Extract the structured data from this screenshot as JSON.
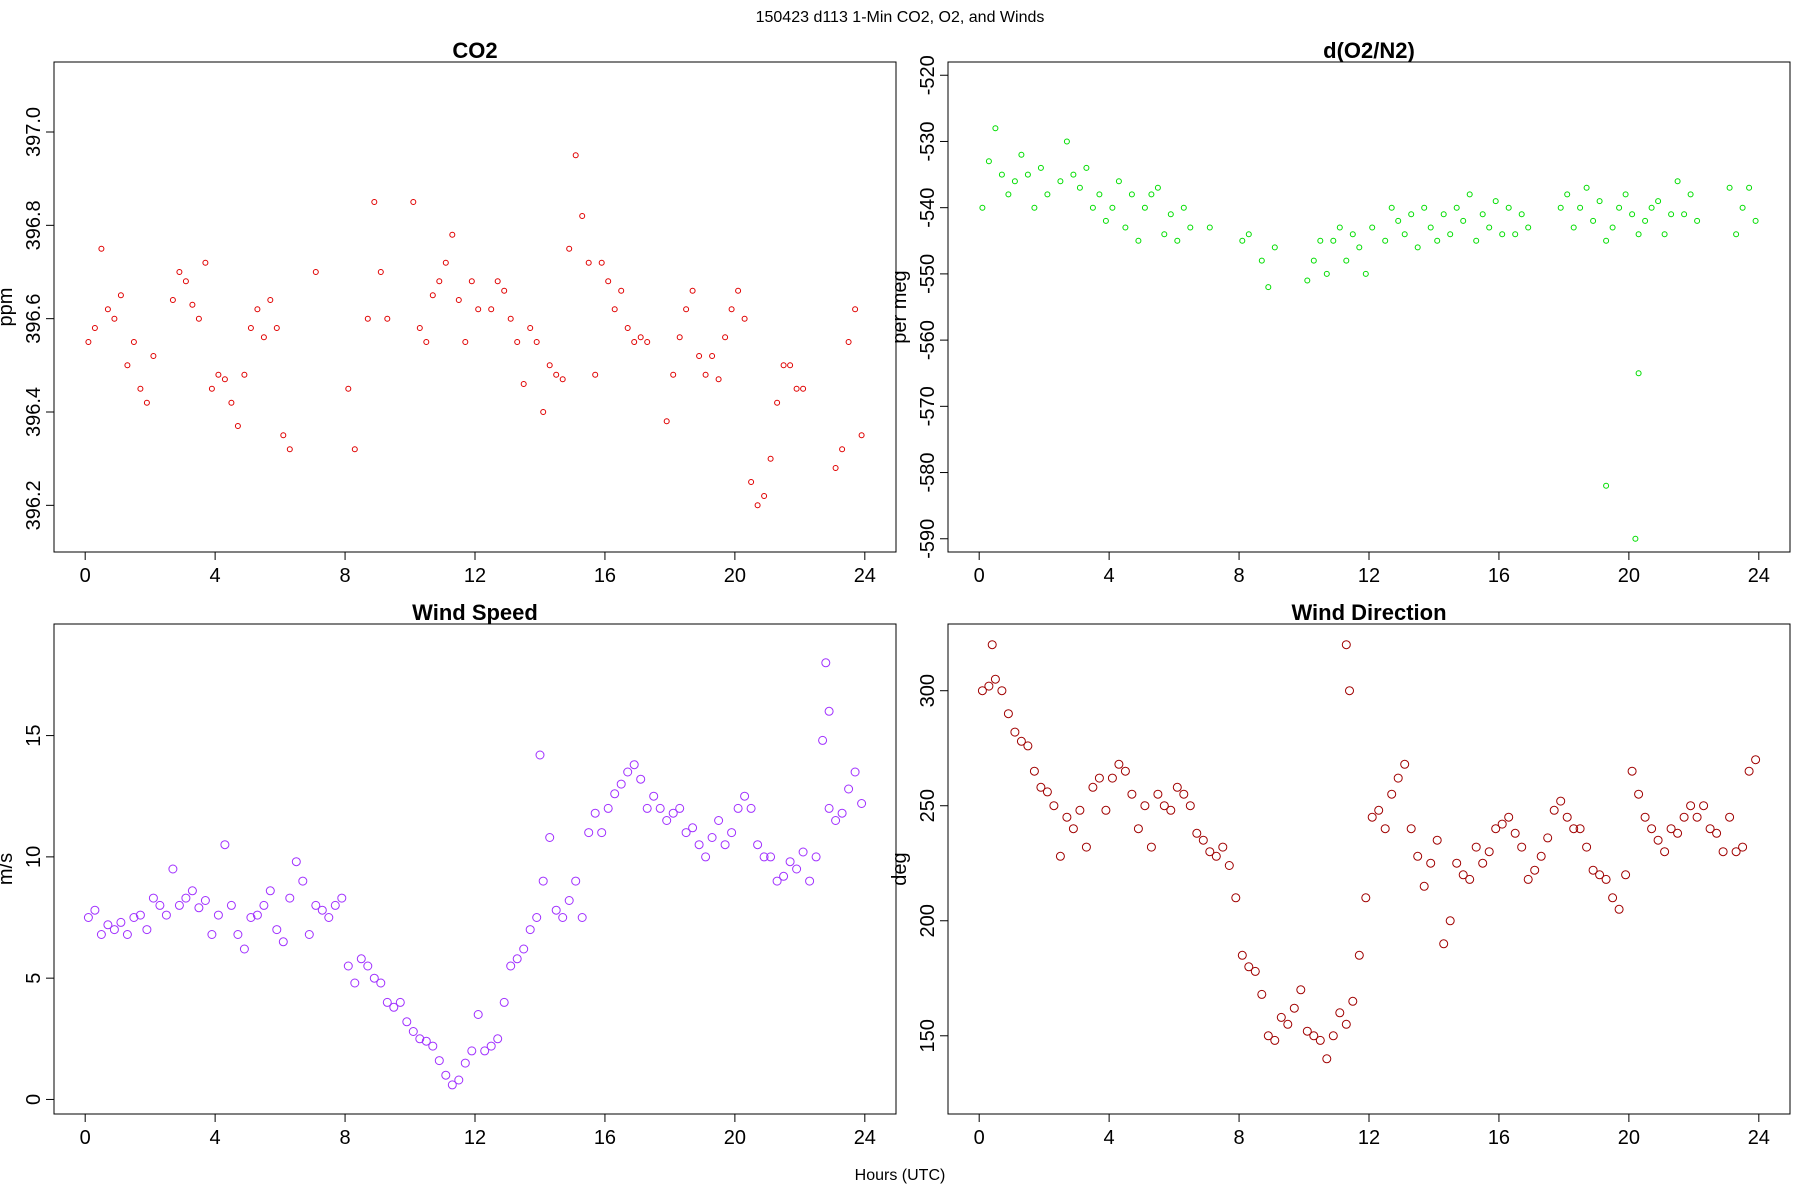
{
  "figure": {
    "title": "150423   d113   1-Min CO2, O2, and Winds",
    "xlabel": "Hours (UTC)"
  },
  "chart_data": [
    {
      "type": "scatter",
      "title": "CO2",
      "ylabel": "ppm",
      "color": "#e00000",
      "xlim": [
        -0.96,
        24.96
      ],
      "ylim": [
        396.1,
        397.15
      ],
      "xticks": [
        0,
        4,
        8,
        12,
        16,
        20,
        24
      ],
      "yticks": [
        396.2,
        396.4,
        396.6,
        396.8,
        397.0
      ],
      "ytick_labels": [
        "396.2",
        "396.4",
        "396.6",
        "396.8",
        "397.0"
      ],
      "grid": false,
      "series": [
        {
          "x": [
            0.1,
            0.3,
            0.5,
            0.7,
            0.9,
            1.1,
            1.3,
            1.5,
            1.7,
            1.9,
            2.1,
            2.7,
            2.9,
            3.1,
            3.3,
            3.5,
            3.7,
            3.9,
            4.1,
            4.3,
            4.5,
            4.7,
            4.9,
            5.1,
            5.3,
            5.5,
            5.7,
            5.9,
            6.1,
            6.3,
            7.1,
            8.1,
            8.3,
            8.7,
            8.9,
            9.1,
            9.3,
            10.1,
            10.3,
            10.5,
            10.7,
            10.9,
            11.1,
            11.3,
            11.5,
            11.7,
            11.9,
            12.1,
            12.5,
            12.7,
            12.9,
            13.1,
            13.3,
            13.5,
            13.7,
            13.9,
            14.1,
            14.3,
            14.5,
            14.7,
            14.9,
            15.1,
            15.3,
            15.5,
            15.7,
            15.9,
            16.1,
            16.3,
            16.5,
            16.7,
            16.9,
            17.1,
            17.3,
            17.9,
            18.1,
            18.3,
            18.5,
            18.7,
            18.9,
            19.1,
            19.3,
            19.5,
            19.7,
            19.9,
            20.1,
            20.3,
            20.5,
            20.7,
            20.9,
            21.1,
            21.3,
            21.5,
            21.7,
            21.9,
            22.1,
            23.1,
            23.3,
            23.5,
            23.7,
            23.9
          ],
          "y": [
            396.55,
            396.58,
            396.75,
            396.62,
            396.6,
            396.65,
            396.5,
            396.55,
            396.45,
            396.42,
            396.52,
            396.64,
            396.7,
            396.68,
            396.63,
            396.6,
            396.72,
            396.45,
            396.48,
            396.47,
            396.42,
            396.37,
            396.48,
            396.58,
            396.62,
            396.56,
            396.64,
            396.58,
            396.35,
            396.32,
            396.7,
            396.45,
            396.32,
            396.6,
            396.85,
            396.7,
            396.6,
            396.85,
            396.58,
            396.55,
            396.65,
            396.68,
            396.72,
            396.78,
            396.64,
            396.55,
            396.68,
            396.62,
            396.62,
            396.68,
            396.66,
            396.6,
            396.55,
            396.46,
            396.58,
            396.55,
            396.4,
            396.5,
            396.48,
            396.47,
            396.75,
            396.95,
            396.82,
            396.72,
            396.48,
            396.72,
            396.68,
            396.62,
            396.66,
            396.58,
            396.55,
            396.56,
            396.55,
            396.38,
            396.48,
            396.56,
            396.62,
            396.66,
            396.52,
            396.48,
            396.52,
            396.47,
            396.56,
            396.62,
            396.66,
            396.6,
            396.25,
            396.2,
            396.22,
            396.3,
            396.42,
            396.5,
            396.5,
            396.45,
            396.45,
            396.28,
            396.32,
            396.55,
            396.62,
            396.35
          ]
        }
      ]
    },
    {
      "type": "scatter",
      "title": "d(O2/N2)",
      "ylabel": "per meg",
      "color": "#00dd00",
      "xlim": [
        -0.96,
        24.96
      ],
      "ylim": [
        -592,
        -518
      ],
      "xticks": [
        0,
        4,
        8,
        12,
        16,
        20,
        24
      ],
      "yticks": [
        -590,
        -580,
        -570,
        -560,
        -550,
        -540,
        -530,
        -520
      ],
      "ytick_labels": [
        "-590",
        "-580",
        "-570",
        "-560",
        "-550",
        "-540",
        "-530",
        "-520"
      ],
      "grid": false,
      "series": [
        {
          "x": [
            0.1,
            0.3,
            0.5,
            0.7,
            0.9,
            1.1,
            1.3,
            1.5,
            1.7,
            1.9,
            2.1,
            2.5,
            2.7,
            2.9,
            3.1,
            3.3,
            3.5,
            3.7,
            3.9,
            4.1,
            4.3,
            4.5,
            4.7,
            4.9,
            5.1,
            5.3,
            5.5,
            5.7,
            5.9,
            6.1,
            6.3,
            6.5,
            7.1,
            8.1,
            8.3,
            8.7,
            8.9,
            9.1,
            10.1,
            10.3,
            10.5,
            10.7,
            10.9,
            11.1,
            11.3,
            11.5,
            11.7,
            11.9,
            12.1,
            12.5,
            12.7,
            12.9,
            13.1,
            13.3,
            13.5,
            13.7,
            13.9,
            14.1,
            14.3,
            14.5,
            14.7,
            14.9,
            15.1,
            15.3,
            15.5,
            15.7,
            15.9,
            16.1,
            16.3,
            16.5,
            16.7,
            16.9,
            17.9,
            18.1,
            18.3,
            18.5,
            18.7,
            18.9,
            19.1,
            19.3,
            19.5,
            19.7,
            19.9,
            20.1,
            20.3,
            20.5,
            20.7,
            20.9,
            21.1,
            21.3,
            21.5,
            21.7,
            21.9,
            22.1,
            23.1,
            23.3,
            23.5,
            23.7,
            23.9,
            19.3,
            20.2,
            20.3
          ],
          "y": [
            -540,
            -533,
            -528,
            -535,
            -538,
            -536,
            -532,
            -535,
            -540,
            -534,
            -538,
            -536,
            -530,
            -535,
            -537,
            -534,
            -540,
            -538,
            -542,
            -540,
            -536,
            -543,
            -538,
            -545,
            -540,
            -538,
            -537,
            -544,
            -541,
            -545,
            -540,
            -543,
            -543,
            -545,
            -544,
            -548,
            -552,
            -546,
            -551,
            -548,
            -545,
            -550,
            -545,
            -543,
            -548,
            -544,
            -546,
            -550,
            -543,
            -545,
            -540,
            -542,
            -544,
            -541,
            -546,
            -540,
            -543,
            -545,
            -541,
            -544,
            -540,
            -542,
            -538,
            -545,
            -541,
            -543,
            -539,
            -544,
            -540,
            -544,
            -541,
            -543,
            -540,
            -538,
            -543,
            -540,
            -537,
            -542,
            -539,
            -545,
            -543,
            -540,
            -538,
            -541,
            -544,
            -542,
            -540,
            -539,
            -544,
            -541,
            -536,
            -541,
            -538,
            -542,
            -537,
            -544,
            -540,
            -537,
            -542,
            -582,
            -590,
            -565
          ]
        }
      ]
    },
    {
      "type": "scatter",
      "title": "Wind Speed",
      "ylabel": "m/s",
      "color": "#a030ff",
      "xlim": [
        -0.96,
        24.96
      ],
      "ylim": [
        -0.6,
        19.6
      ],
      "xticks": [
        0,
        4,
        8,
        12,
        16,
        20,
        24
      ],
      "yticks": [
        0,
        5,
        10,
        15
      ],
      "ytick_labels": [
        "0",
        "5",
        "10",
        "15"
      ],
      "grid": false,
      "series": [
        {
          "x": [
            0.1,
            0.3,
            0.5,
            0.7,
            0.9,
            1.1,
            1.3,
            1.5,
            1.7,
            1.9,
            2.1,
            2.3,
            2.5,
            2.7,
            2.9,
            3.1,
            3.3,
            3.5,
            3.7,
            3.9,
            4.1,
            4.3,
            4.5,
            4.7,
            4.9,
            5.1,
            5.3,
            5.5,
            5.7,
            5.9,
            6.1,
            6.3,
            6.5,
            6.7,
            6.9,
            7.1,
            7.3,
            7.5,
            7.7,
            7.9,
            8.1,
            8.3,
            8.5,
            8.7,
            8.9,
            9.1,
            9.3,
            9.5,
            9.7,
            9.9,
            10.1,
            10.3,
            10.5,
            10.7,
            10.9,
            11.1,
            11.3,
            11.5,
            11.7,
            11.9,
            12.1,
            12.3,
            12.5,
            12.7,
            12.9,
            13.1,
            13.3,
            13.5,
            13.7,
            13.9,
            14.1,
            14.3,
            14.5,
            14.7,
            14.9,
            15.1,
            15.3,
            15.5,
            15.7,
            15.9,
            16.1,
            16.3,
            16.5,
            16.7,
            16.9,
            17.1,
            17.3,
            17.5,
            17.7,
            17.9,
            18.1,
            18.3,
            18.5,
            18.7,
            18.9,
            19.1,
            19.3,
            19.5,
            19.7,
            19.9,
            20.1,
            20.3,
            20.5,
            20.7,
            20.9,
            21.1,
            21.3,
            21.5,
            21.7,
            21.9,
            22.1,
            22.3,
            22.5,
            22.7,
            22.9,
            23.1,
            23.3,
            23.5,
            23.7,
            23.9,
            22.8,
            22.9,
            14.0
          ],
          "y": [
            7.5,
            7.8,
            6.8,
            7.2,
            7.0,
            7.3,
            6.8,
            7.5,
            7.6,
            7.0,
            8.3,
            8.0,
            7.6,
            9.5,
            8.0,
            8.3,
            8.6,
            7.9,
            8.2,
            6.8,
            7.6,
            10.5,
            8.0,
            6.8,
            6.2,
            7.5,
            7.6,
            8.0,
            8.6,
            7.0,
            6.5,
            8.3,
            9.8,
            9.0,
            6.8,
            8.0,
            7.8,
            7.5,
            8.0,
            8.3,
            5.5,
            4.8,
            5.8,
            5.5,
            5.0,
            4.8,
            4.0,
            3.8,
            4.0,
            3.2,
            2.8,
            2.5,
            2.4,
            2.2,
            1.6,
            1.0,
            0.6,
            0.8,
            1.5,
            2.0,
            3.5,
            2.0,
            2.2,
            2.5,
            4.0,
            5.5,
            5.8,
            6.2,
            7.0,
            7.5,
            9.0,
            10.8,
            7.8,
            7.5,
            8.2,
            9.0,
            7.5,
            11.0,
            11.8,
            11.0,
            12.0,
            12.6,
            13.0,
            13.5,
            13.8,
            13.2,
            12.0,
            12.5,
            12.0,
            11.5,
            11.8,
            12.0,
            11.0,
            11.2,
            10.5,
            10.0,
            10.8,
            11.5,
            10.5,
            11.0,
            12.0,
            12.5,
            12.0,
            10.5,
            10.0,
            10.0,
            9.0,
            9.2,
            9.8,
            9.5,
            10.2,
            9.0,
            10.0,
            14.8,
            12.0,
            11.5,
            11.8,
            12.8,
            13.5,
            12.2,
            18.0,
            16.0,
            14.2
          ]
        }
      ]
    },
    {
      "type": "scatter",
      "title": "Wind Direction",
      "ylabel": "deg",
      "color": "#a00000",
      "xlim": [
        -0.96,
        24.96
      ],
      "ylim": [
        116,
        329
      ],
      "xticks": [
        0,
        4,
        8,
        12,
        16,
        20,
        24
      ],
      "yticks": [
        150,
        200,
        250,
        300
      ],
      "ytick_labels": [
        "150",
        "200",
        "250",
        "300"
      ],
      "grid": false,
      "series": [
        {
          "x": [
            0.1,
            0.3,
            0.5,
            0.7,
            0.9,
            1.1,
            1.3,
            1.5,
            1.7,
            1.9,
            2.1,
            2.3,
            2.5,
            2.7,
            2.9,
            3.1,
            3.3,
            3.5,
            3.7,
            3.9,
            4.1,
            4.3,
            4.5,
            4.7,
            4.9,
            5.1,
            5.3,
            5.5,
            5.7,
            5.9,
            6.1,
            6.3,
            6.5,
            6.7,
            6.9,
            7.1,
            7.3,
            7.5,
            7.7,
            7.9,
            8.1,
            8.3,
            8.5,
            8.7,
            8.9,
            9.1,
            9.3,
            9.5,
            9.7,
            9.9,
            10.1,
            10.3,
            10.5,
            10.7,
            10.9,
            11.1,
            11.3,
            11.5,
            11.7,
            11.9,
            12.1,
            12.3,
            12.5,
            12.7,
            12.9,
            13.1,
            13.3,
            13.5,
            13.7,
            13.9,
            14.1,
            14.3,
            14.5,
            14.7,
            14.9,
            15.1,
            15.3,
            15.5,
            15.7,
            15.9,
            16.1,
            16.3,
            16.5,
            16.7,
            16.9,
            17.1,
            17.3,
            17.5,
            17.7,
            17.9,
            18.1,
            18.3,
            18.5,
            18.7,
            18.9,
            19.1,
            19.3,
            19.5,
            19.7,
            19.9,
            20.1,
            20.3,
            20.5,
            20.7,
            20.9,
            21.1,
            21.3,
            21.5,
            21.7,
            21.9,
            22.1,
            22.3,
            22.5,
            22.7,
            22.9,
            23.1,
            23.3,
            23.5,
            23.7,
            23.9,
            0.4,
            11.3,
            11.4
          ],
          "y": [
            300,
            302,
            305,
            300,
            290,
            282,
            278,
            276,
            265,
            258,
            256,
            250,
            228,
            245,
            240,
            248,
            232,
            258,
            262,
            248,
            262,
            268,
            265,
            255,
            240,
            250,
            232,
            255,
            250,
            248,
            258,
            255,
            250,
            238,
            235,
            230,
            228,
            232,
            224,
            210,
            185,
            180,
            178,
            168,
            150,
            148,
            158,
            155,
            162,
            170,
            152,
            150,
            148,
            140,
            150,
            160,
            155,
            165,
            185,
            210,
            245,
            248,
            240,
            255,
            262,
            268,
            240,
            228,
            215,
            225,
            235,
            190,
            200,
            225,
            220,
            218,
            232,
            225,
            230,
            240,
            242,
            245,
            238,
            232,
            218,
            222,
            228,
            236,
            248,
            252,
            245,
            240,
            240,
            232,
            222,
            220,
            218,
            210,
            205,
            220,
            265,
            255,
            245,
            240,
            235,
            230,
            240,
            238,
            245,
            250,
            245,
            250,
            240,
            238,
            230,
            245,
            230,
            232,
            265,
            270,
            320,
            320,
            300
          ]
        }
      ]
    }
  ]
}
